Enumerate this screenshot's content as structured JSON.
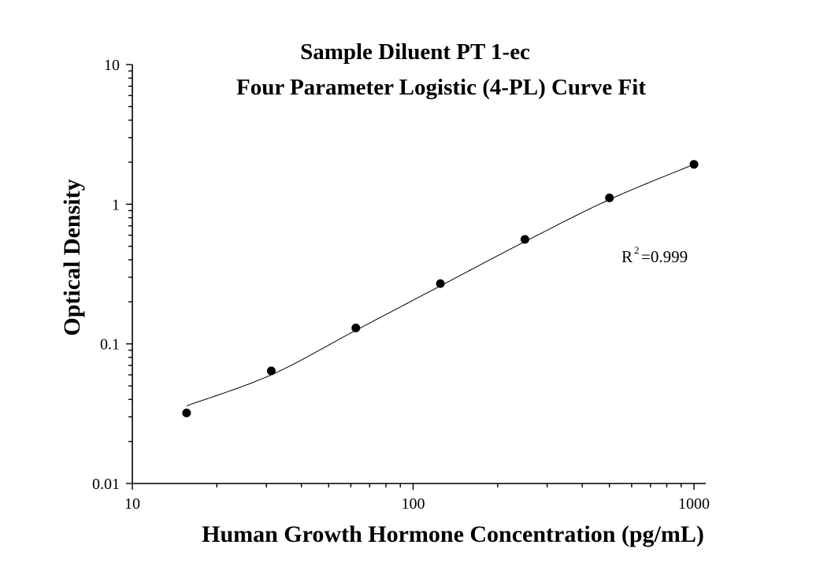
{
  "chart_data": {
    "type": "scatter",
    "title": "Sample Diluent PT 1-ec",
    "subtitle": "Four Parameter Logistic (4-PL) Curve Fit",
    "xlabel": "Human Growth Hormone Concentration (pg/mL)",
    "ylabel": "Optical Density",
    "xscale": "log",
    "yscale": "log",
    "xlim": [
      10,
      1100
    ],
    "ylim": [
      0.01,
      10
    ],
    "x_ticks": [
      10,
      100,
      1000
    ],
    "x_tick_labels": [
      "10",
      "100",
      "1000"
    ],
    "y_ticks": [
      0.01,
      0.1,
      1,
      10
    ],
    "y_tick_labels": [
      "0.01",
      "0.1",
      "1",
      "10"
    ],
    "grid": false,
    "series": [
      {
        "points": [
          {
            "x": 15.6,
            "y": 0.032
          },
          {
            "x": 31.25,
            "y": 0.064
          },
          {
            "x": 62.5,
            "y": 0.13
          },
          {
            "x": 125,
            "y": 0.27
          },
          {
            "x": 250,
            "y": 0.56
          },
          {
            "x": 500,
            "y": 1.11
          },
          {
            "x": 1000,
            "y": 1.93
          }
        ]
      }
    ],
    "fit": {
      "method": "4-PL",
      "curve": [
        {
          "x": 15.6,
          "y": 0.036
        },
        {
          "x": 31.25,
          "y": 0.06
        },
        {
          "x": 62.5,
          "y": 0.125
        },
        {
          "x": 125,
          "y": 0.26
        },
        {
          "x": 250,
          "y": 0.54
        },
        {
          "x": 500,
          "y": 1.08
        },
        {
          "x": 1000,
          "y": 1.93
        }
      ]
    },
    "annotations": {
      "r2_base": "R",
      "r2_sup": "2",
      "r2_value": "=0.999"
    }
  }
}
